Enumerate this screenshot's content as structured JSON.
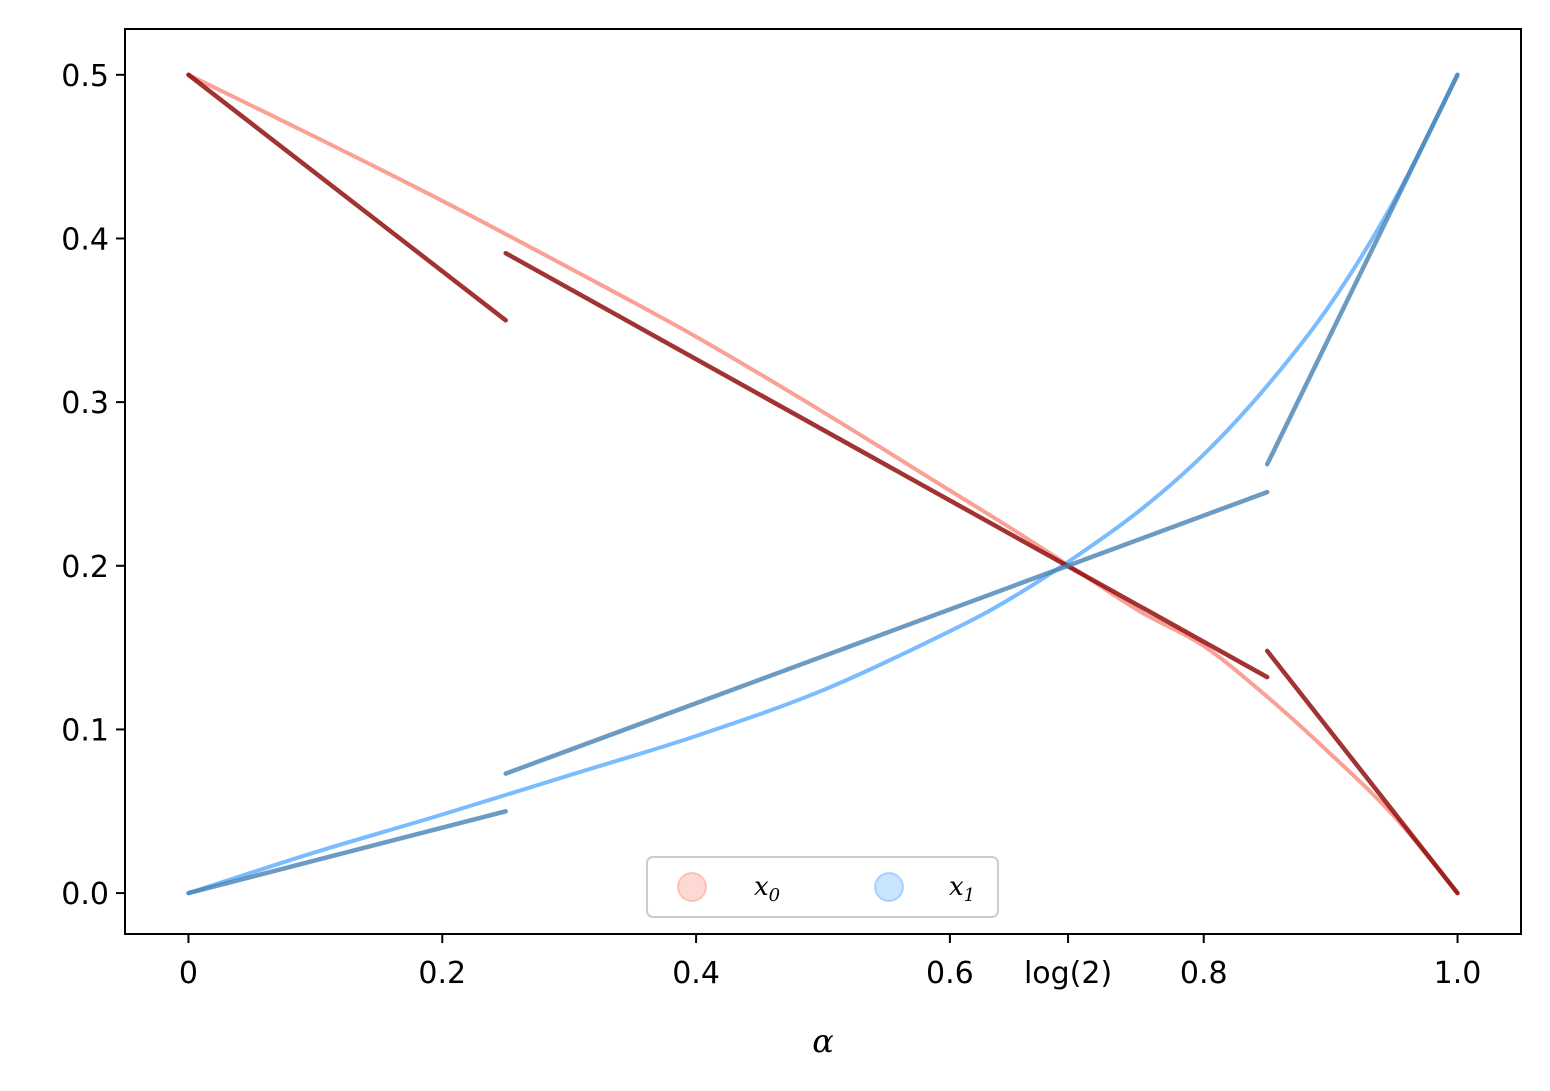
{
  "chart_data": {
    "type": "line",
    "title": "",
    "xlabel": "α",
    "ylabel": "",
    "xlim": [
      -0.05,
      1.05
    ],
    "ylim": [
      -0.025,
      0.528
    ],
    "grid": false,
    "legend_position": "bottom-center",
    "x_ticks": [
      {
        "value": 0,
        "label": "0"
      },
      {
        "value": 0.2,
        "label": "0.2"
      },
      {
        "value": 0.4,
        "label": "0.4"
      },
      {
        "value": 0.6,
        "label": "0.6"
      },
      {
        "value": 0.6931,
        "label": "log(2)"
      },
      {
        "value": 0.8,
        "label": "0.8"
      },
      {
        "value": 1.0,
        "label": "1.0"
      }
    ],
    "y_ticks": [
      {
        "value": 0.0,
        "label": "0.0"
      },
      {
        "value": 0.1,
        "label": "0.1"
      },
      {
        "value": 0.2,
        "label": "0.2"
      },
      {
        "value": 0.3,
        "label": "0.3"
      },
      {
        "value": 0.4,
        "label": "0.4"
      },
      {
        "value": 0.5,
        "label": "0.5"
      }
    ],
    "legend": [
      {
        "base": "x",
        "sub": "0",
        "color": "#fa8072"
      },
      {
        "base": "x",
        "sub": "1",
        "color": "#4da6ff"
      }
    ],
    "series": [
      {
        "group": "x0",
        "style": "curve",
        "color": "#fa8072",
        "x": [
          0.0,
          0.1,
          0.2,
          0.3,
          0.4,
          0.5,
          0.6,
          0.65,
          0.7,
          0.75,
          0.8,
          0.85,
          0.9,
          0.95,
          1.0
        ],
        "y": [
          0.5,
          0.462,
          0.423,
          0.382,
          0.34,
          0.294,
          0.246,
          0.222,
          0.197,
          0.172,
          0.151,
          0.12,
          0.085,
          0.047,
          0.0
        ]
      },
      {
        "group": "x1",
        "style": "curve",
        "color": "#4da6ff",
        "x": [
          0.0,
          0.1,
          0.2,
          0.3,
          0.4,
          0.5,
          0.6,
          0.65,
          0.7,
          0.75,
          0.8,
          0.85,
          0.9,
          0.95,
          1.0
        ],
        "y": [
          0.0,
          0.025,
          0.048,
          0.072,
          0.096,
          0.124,
          0.16,
          0.181,
          0.206,
          0.234,
          0.268,
          0.31,
          0.36,
          0.423,
          0.5
        ]
      },
      {
        "group": "x0",
        "style": "segments",
        "color": "#8b0000",
        "segments": [
          {
            "x": [
              0.0,
              0.25
            ],
            "y": [
              0.5,
              0.35
            ]
          },
          {
            "x": [
              0.25,
              0.85
            ],
            "y": [
              0.391,
              0.132
            ]
          },
          {
            "x": [
              0.85,
              1.0
            ],
            "y": [
              0.148,
              0.0
            ]
          }
        ]
      },
      {
        "group": "x1",
        "style": "segments",
        "color": "#4682b4",
        "segments": [
          {
            "x": [
              0.0,
              0.25
            ],
            "y": [
              0.0,
              0.05
            ]
          },
          {
            "x": [
              0.25,
              0.85
            ],
            "y": [
              0.073,
              0.245
            ]
          },
          {
            "x": [
              0.85,
              1.0
            ],
            "y": [
              0.262,
              0.5
            ]
          }
        ]
      }
    ]
  }
}
